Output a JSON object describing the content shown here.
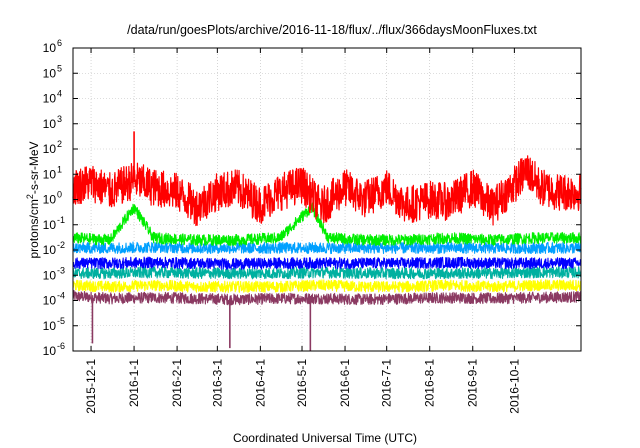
{
  "chart_data": {
    "type": "line",
    "title": "/data/run/goesPlots/archive/2016-11-18/flux/../flux/366daysMoonFluxes.txt",
    "xlabel": "Coordinated Universal Time (UTC)",
    "ylabel": {
      "prefix": "protons/cm",
      "sup": "2",
      "suffix": "-s-sr-MeV"
    },
    "x_range": [
      "2015-11-18",
      "2016-11-18"
    ],
    "x_ticks": [
      "2015-12-1",
      "2016-1-1",
      "2016-2-1",
      "2016-3-1",
      "2016-4-1",
      "2016-5-1",
      "2016-6-1",
      "2016-7-1",
      "2016-8-1",
      "2016-9-1",
      "2016-10-1"
    ],
    "x_tick_dates": [
      "2015-12-01",
      "2016-01-01",
      "2016-02-01",
      "2016-03-01",
      "2016-04-01",
      "2016-05-01",
      "2016-06-01",
      "2016-07-01",
      "2016-08-01",
      "2016-09-01",
      "2016-10-01"
    ],
    "y_scale": "log",
    "ylim": [
      1e-06,
      1000000.0
    ],
    "y_ticks": [
      {
        "base": "10",
        "exp": "-6"
      },
      {
        "base": "10",
        "exp": "-5"
      },
      {
        "base": "10",
        "exp": "-4"
      },
      {
        "base": "10",
        "exp": "-3"
      },
      {
        "base": "10",
        "exp": "-2"
      },
      {
        "base": "10",
        "exp": "-1"
      },
      {
        "base": "10",
        "exp": "0"
      },
      {
        "base": "10",
        "exp": "1"
      },
      {
        "base": "10",
        "exp": "2"
      },
      {
        "base": "10",
        "exp": "3"
      },
      {
        "base": "10",
        "exp": "4"
      },
      {
        "base": "10",
        "exp": "5"
      },
      {
        "base": "10",
        "exp": "6"
      }
    ],
    "grid": true,
    "legend": "none",
    "series": [
      {
        "color": "#8b3a62",
        "points": [
          [
            "2015-11-18",
            0.00015
          ],
          [
            "2015-12-15",
            0.00012
          ],
          [
            "2016-01-15",
            0.00013
          ],
          [
            "2016-02-15",
            0.00012
          ],
          [
            "2016-03-15",
            0.00011
          ],
          [
            "2016-04-15",
            0.00012
          ],
          [
            "2016-05-15",
            0.00012
          ],
          [
            "2016-06-15",
            0.00011
          ],
          [
            "2016-07-15",
            0.00012
          ],
          [
            "2016-08-15",
            0.00013
          ],
          [
            "2016-09-15",
            0.00012
          ],
          [
            "2016-10-15",
            0.00013
          ],
          [
            "2016-11-18",
            0.00014
          ]
        ]
      },
      {
        "color": "#ffff00",
        "points": [
          [
            "2015-11-18",
            0.0004
          ],
          [
            "2015-12-15",
            0.00035
          ],
          [
            "2016-01-15",
            0.0004
          ],
          [
            "2016-02-15",
            0.00035
          ],
          [
            "2016-03-15",
            0.00035
          ],
          [
            "2016-04-15",
            0.00035
          ],
          [
            "2016-05-15",
            0.0004
          ],
          [
            "2016-06-15",
            0.00035
          ],
          [
            "2016-07-15",
            0.00035
          ],
          [
            "2016-08-15",
            0.0004
          ],
          [
            "2016-09-15",
            0.00035
          ],
          [
            "2016-10-15",
            0.0004
          ],
          [
            "2016-11-18",
            0.0004
          ]
        ]
      },
      {
        "color": "#00b0a0",
        "points": [
          [
            "2015-11-18",
            0.0012
          ],
          [
            "2015-12-15",
            0.0012
          ],
          [
            "2016-01-15",
            0.0013
          ],
          [
            "2016-02-15",
            0.0012
          ],
          [
            "2016-03-15",
            0.0012
          ],
          [
            "2016-04-15",
            0.0012
          ],
          [
            "2016-05-15",
            0.0013
          ],
          [
            "2016-06-15",
            0.0012
          ],
          [
            "2016-07-15",
            0.0012
          ],
          [
            "2016-08-15",
            0.0012
          ],
          [
            "2016-09-15",
            0.0012
          ],
          [
            "2016-10-15",
            0.0013
          ],
          [
            "2016-11-18",
            0.0013
          ]
        ]
      },
      {
        "color": "#0000ff",
        "points": [
          [
            "2015-11-18",
            0.003
          ],
          [
            "2015-12-15",
            0.003
          ],
          [
            "2016-01-15",
            0.0032
          ],
          [
            "2016-02-15",
            0.003
          ],
          [
            "2016-03-15",
            0.0028
          ],
          [
            "2016-04-15",
            0.003
          ],
          [
            "2016-05-15",
            0.003
          ],
          [
            "2016-06-15",
            0.003
          ],
          [
            "2016-07-15",
            0.003
          ],
          [
            "2016-08-15",
            0.0032
          ],
          [
            "2016-09-15",
            0.003
          ],
          [
            "2016-10-15",
            0.003
          ],
          [
            "2016-11-18",
            0.003
          ]
        ]
      },
      {
        "color": "#00a0ff",
        "points": [
          [
            "2015-11-18",
            0.012
          ],
          [
            "2015-12-15",
            0.012
          ],
          [
            "2016-01-15",
            0.013
          ],
          [
            "2016-02-15",
            0.012
          ],
          [
            "2016-03-15",
            0.012
          ],
          [
            "2016-04-15",
            0.012
          ],
          [
            "2016-05-15",
            0.012
          ],
          [
            "2016-06-15",
            0.012
          ],
          [
            "2016-07-15",
            0.012
          ],
          [
            "2016-08-15",
            0.012
          ],
          [
            "2016-09-15",
            0.012
          ],
          [
            "2016-10-15",
            0.012
          ],
          [
            "2016-11-18",
            0.012
          ]
        ]
      },
      {
        "color": "#00ee00",
        "points": [
          [
            "2015-11-18",
            0.03
          ],
          [
            "2015-12-15",
            0.025
          ],
          [
            "2016-01-01",
            0.5
          ],
          [
            "2016-01-15",
            0.03
          ],
          [
            "2016-02-15",
            0.025
          ],
          [
            "2016-03-15",
            0.025
          ],
          [
            "2016-04-15",
            0.03
          ],
          [
            "2016-05-08",
            0.5
          ],
          [
            "2016-05-20",
            0.03
          ],
          [
            "2016-06-15",
            0.025
          ],
          [
            "2016-07-15",
            0.025
          ],
          [
            "2016-08-15",
            0.03
          ],
          [
            "2016-09-15",
            0.025
          ],
          [
            "2016-10-15",
            0.03
          ],
          [
            "2016-11-18",
            0.03
          ]
        ]
      },
      {
        "color": "#ff0000",
        "points": [
          [
            "2015-11-18",
            3
          ],
          [
            "2015-12-01",
            5
          ],
          [
            "2015-12-15",
            2
          ],
          [
            "2016-01-01",
            6
          ],
          [
            "2016-01-15",
            3
          ],
          [
            "2016-02-01",
            2
          ],
          [
            "2016-02-15",
            0.5
          ],
          [
            "2016-03-01",
            2
          ],
          [
            "2016-03-15",
            3
          ],
          [
            "2016-04-01",
            0.6
          ],
          [
            "2016-04-15",
            2
          ],
          [
            "2016-05-01",
            4
          ],
          [
            "2016-05-15",
            0.5
          ],
          [
            "2016-06-01",
            3
          ],
          [
            "2016-06-15",
            1
          ],
          [
            "2016-07-01",
            3
          ],
          [
            "2016-07-15",
            0.6
          ],
          [
            "2016-08-01",
            1
          ],
          [
            "2016-08-15",
            0.8
          ],
          [
            "2016-09-01",
            3
          ],
          [
            "2016-09-15",
            0.5
          ],
          [
            "2016-10-01",
            4
          ],
          [
            "2016-10-10",
            15
          ],
          [
            "2016-10-20",
            3
          ],
          [
            "2016-11-01",
            2
          ],
          [
            "2016-11-18",
            2
          ]
        ]
      }
    ],
    "annotations": [
      {
        "series_color": "#ff0000",
        "date": "2016-01-01",
        "peak": 500
      },
      {
        "series_color": "#8b3a62",
        "date": "2015-12-02",
        "dip": 2e-06
      },
      {
        "series_color": "#8b3a62",
        "date": "2016-03-10",
        "dip": 1.3e-06
      },
      {
        "series_color": "#8b3a62",
        "date": "2016-05-07",
        "dip": 1e-06
      }
    ]
  }
}
